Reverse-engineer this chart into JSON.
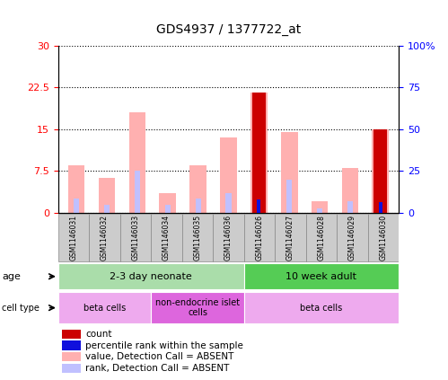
{
  "title": "GDS4937 / 1377722_at",
  "samples": [
    "GSM1146031",
    "GSM1146032",
    "GSM1146033",
    "GSM1146034",
    "GSM1146035",
    "GSM1146036",
    "GSM1146026",
    "GSM1146027",
    "GSM1146028",
    "GSM1146029",
    "GSM1146030"
  ],
  "value_absent": [
    8.5,
    6.2,
    18.0,
    3.5,
    8.5,
    13.5,
    21.5,
    14.5,
    2.0,
    8.0,
    15.0
  ],
  "rank_absent": [
    2.5,
    1.5,
    7.5,
    1.5,
    2.5,
    3.5,
    0.5,
    6.0,
    0.8,
    2.0,
    6.5
  ],
  "count": [
    0,
    0,
    0,
    0,
    0,
    0,
    21.5,
    0,
    0,
    0,
    15.0
  ],
  "percentile_rank_left": [
    0,
    0,
    0,
    0,
    0,
    0,
    8.0,
    0,
    0,
    0,
    6.5
  ],
  "ylim_left": [
    0,
    30
  ],
  "ylim_right": [
    0,
    100
  ],
  "yticks_left": [
    0,
    7.5,
    15,
    22.5,
    30
  ],
  "yticks_right": [
    0,
    25,
    50,
    75,
    100
  ],
  "ytick_labels_left": [
    "0",
    "7.5",
    "15",
    "22.5",
    "30"
  ],
  "ytick_labels_right": [
    "0",
    "25",
    "50",
    "75",
    "100%"
  ],
  "color_count": "#cc0000",
  "color_rank": "#1010dd",
  "color_value_absent": "#ffb0b0",
  "color_rank_absent": "#c0c0ff",
  "age_groups": [
    {
      "label": "2-3 day neonate",
      "start": 0,
      "end": 6,
      "color": "#aaddaa"
    },
    {
      "label": "10 week adult",
      "start": 6,
      "end": 11,
      "color": "#55cc55"
    }
  ],
  "cell_groups": [
    {
      "label": "beta cells",
      "start": 0,
      "end": 3,
      "color": "#eeaaee"
    },
    {
      "label": "non-endocrine islet\ncells",
      "start": 3,
      "end": 6,
      "color": "#dd66dd"
    },
    {
      "label": "beta cells",
      "start": 6,
      "end": 11,
      "color": "#eeaaee"
    }
  ],
  "legend_items": [
    {
      "label": "count",
      "color": "#cc0000"
    },
    {
      "label": "percentile rank within the sample",
      "color": "#1010dd"
    },
    {
      "label": "value, Detection Call = ABSENT",
      "color": "#ffb0b0"
    },
    {
      "label": "rank, Detection Call = ABSENT",
      "color": "#c0c0ff"
    }
  ],
  "background_color": "#ffffff",
  "sample_box_color": "#cccccc",
  "sample_box_edge": "#888888"
}
